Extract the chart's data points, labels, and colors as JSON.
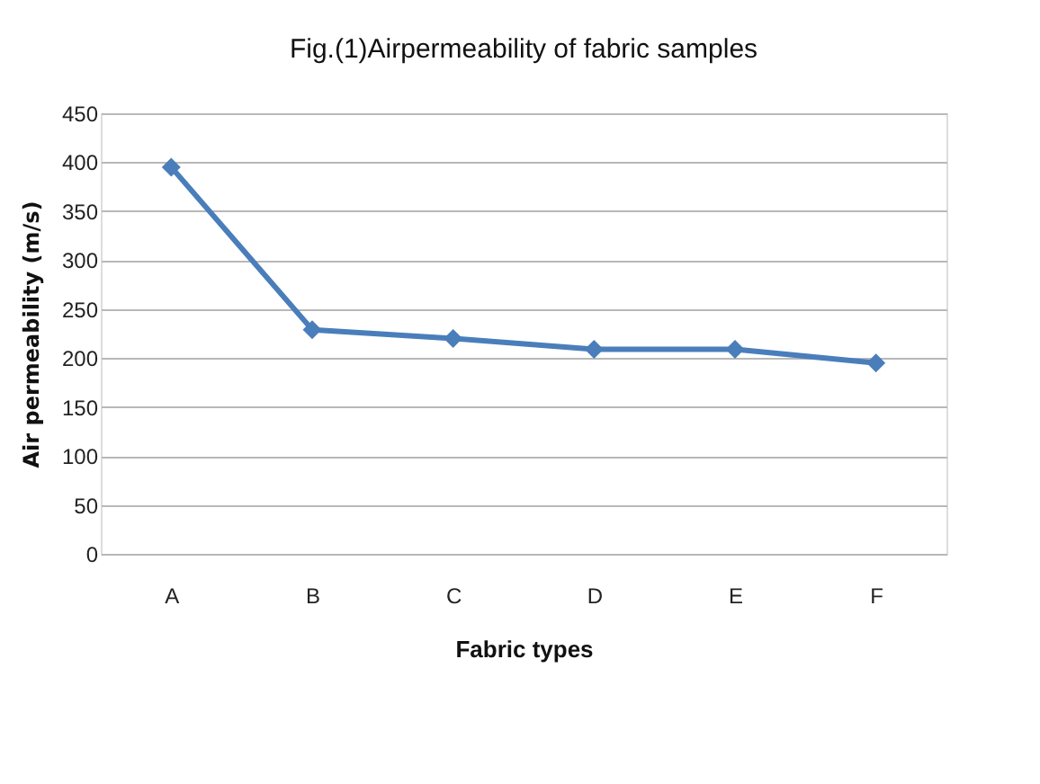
{
  "chart_data": {
    "type": "line",
    "title": "Fig.(1)Airpermeability of fabric samples",
    "xlabel": "Fabric types",
    "ylabel": "Air permeability (m/s)",
    "categories": [
      "A",
      "B",
      "C",
      "D",
      "E",
      "F"
    ],
    "series": [
      {
        "color": "#4a7ebb",
        "values": [
          395,
          229,
          220,
          209,
          209,
          195
        ]
      }
    ],
    "ylim": [
      0,
      450
    ],
    "yticks": [
      0,
      50,
      100,
      150,
      200,
      250,
      300,
      350,
      400,
      450
    ],
    "grid": "y",
    "marker": "diamond",
    "line_style": "solid"
  }
}
